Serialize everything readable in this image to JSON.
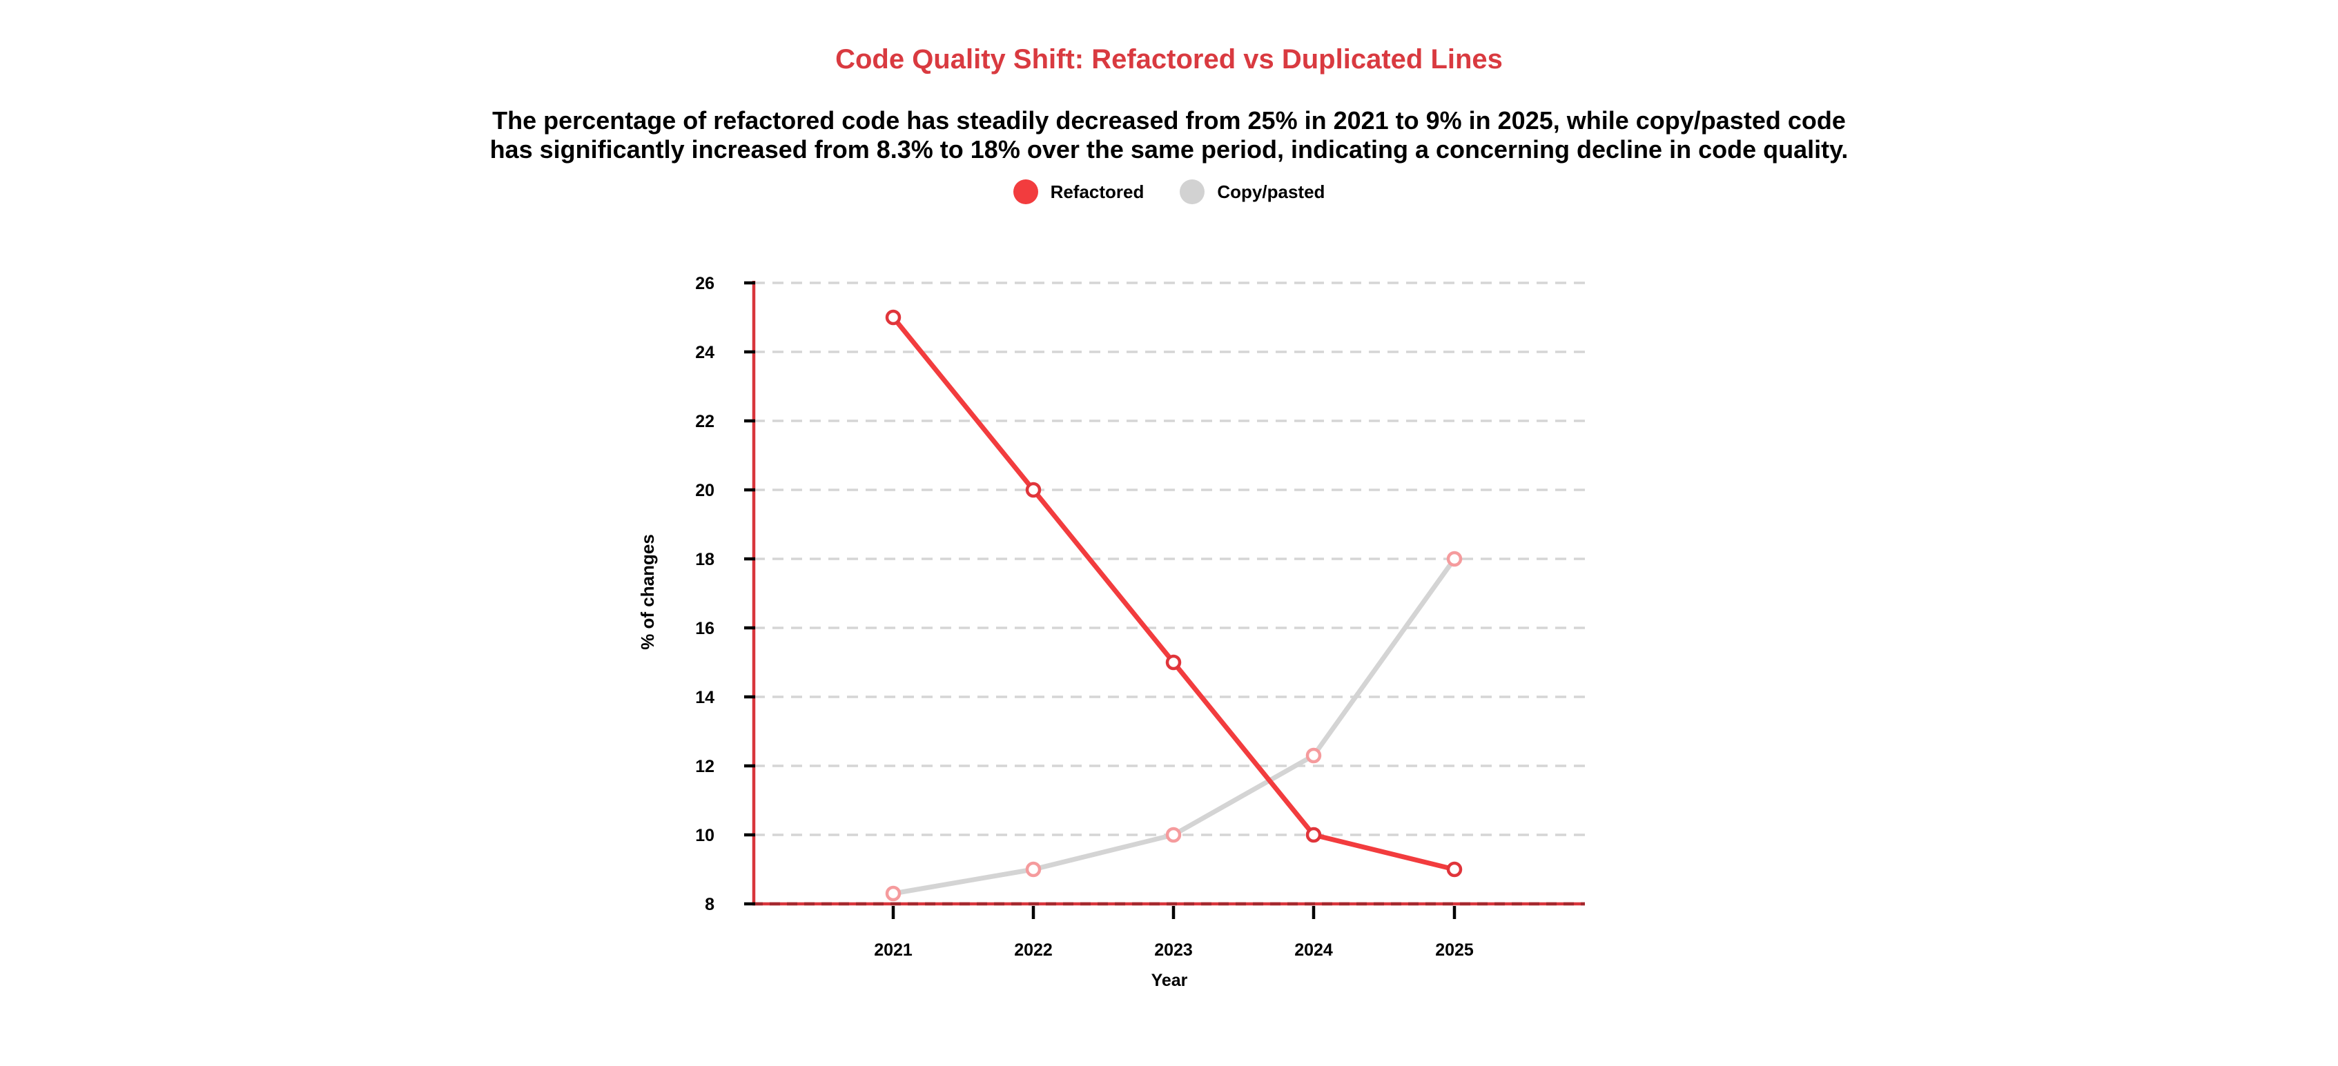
{
  "header": {
    "title": "Code Quality Shift: Refactored vs Duplicated Lines",
    "title_color": "#D93A40",
    "subtitle_line1": "The percentage of refactored code has steadily decreased from 25% in 2021 to 9% in 2025, while copy/pasted code",
    "subtitle_line2": "has significantly increased from 8.3% to 18% over the same period, indicating a concerning decline in code quality."
  },
  "legend": {
    "items": [
      {
        "label": "Refactored",
        "color": "#F23C3E"
      },
      {
        "label": "Copy/pasted",
        "color": "#D2D2D2"
      }
    ]
  },
  "chart_data": {
    "type": "line",
    "categories": [
      "2021",
      "2022",
      "2023",
      "2024",
      "2025"
    ],
    "series": [
      {
        "name": "Refactored",
        "values": [
          25,
          20,
          15,
          10,
          9
        ],
        "color": "#F23C3E",
        "marker_stroke": "#E0353B",
        "marker_fill": "#FFFFFF"
      },
      {
        "name": "Copy/pasted",
        "values": [
          8.3,
          9,
          10,
          12.3,
          18
        ],
        "color": "#D4D4D4",
        "marker_stroke": "#F59B9D",
        "marker_fill": "#FFFFFF"
      }
    ],
    "title": "Code Quality Shift: Refactored vs Duplicated Lines",
    "xlabel": "Year",
    "ylabel": "% of changes",
    "ylim": [
      8,
      26
    ],
    "ytick_step": 2,
    "yticks": [
      "8",
      "10",
      "12",
      "14",
      "16",
      "18",
      "20",
      "22",
      "24",
      "26"
    ],
    "grid": "horizontal-dashed",
    "legend_position": "top-center",
    "axis_color": "#D8353B",
    "axis_dash_overlay_color": "#A4282E",
    "gridline_color": "#D5D5D5",
    "tick_color": "#000000"
  }
}
